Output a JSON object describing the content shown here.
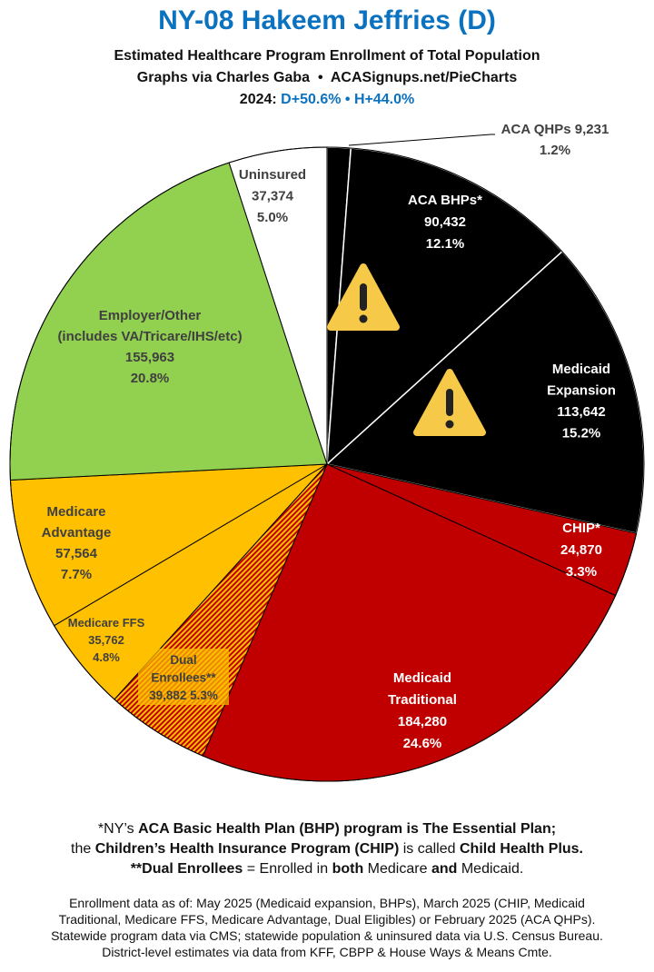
{
  "header": {
    "title": "NY-08 Hakeem Jeffries (D)",
    "subtitle": "Estimated Healthcare Program Enrollment of Total Population",
    "credit": "Graphs via Charles Gaba  •  ACASignups.net/PieCharts",
    "election_prefix": "2024: ",
    "election_d": "D+50.6%",
    "election_sep": " • ",
    "election_h": "H+44.0%"
  },
  "chart_data": {
    "type": "pie",
    "start": "12 o'clock, clockwise",
    "slices": [
      {
        "key": "qhp",
        "label": [
          "ACA QHPs 9,231",
          "1.2%"
        ],
        "value": 9231,
        "percent": 1.2,
        "color": "#000000"
      },
      {
        "key": "bhp",
        "label": [
          "ACA BHPs*",
          "90,432",
          "12.1%"
        ],
        "value": 90432,
        "percent": 12.1,
        "color": "#000000",
        "warning": true
      },
      {
        "key": "expansion",
        "label": [
          "Medicaid",
          "Expansion",
          "113,642",
          "15.2%"
        ],
        "value": 113642,
        "percent": 15.2,
        "color": "#000000",
        "warning": true
      },
      {
        "key": "chip",
        "label": [
          "CHIP*",
          "24,870",
          "3.3%"
        ],
        "value": 24870,
        "percent": 3.3,
        "color": "#c00000"
      },
      {
        "key": "traditional",
        "label": [
          "Medicaid",
          "Traditional",
          "184,280",
          "24.6%"
        ],
        "value": 184280,
        "percent": 24.6,
        "color": "#c00000"
      },
      {
        "key": "dual",
        "label": [
          "Dual",
          "Enrollees**",
          "39,882 5.3%"
        ],
        "value": 39882,
        "percent": 5.3,
        "color": "hatched #c00000/#ffc000"
      },
      {
        "key": "ffs",
        "label": [
          "Medicare FFS",
          "35,762",
          "4.8%"
        ],
        "value": 35762,
        "percent": 4.8,
        "color": "#ffc000"
      },
      {
        "key": "advantage",
        "label": [
          "Medicare",
          "Advantage",
          "57,564",
          "7.7%"
        ],
        "value": 57564,
        "percent": 7.7,
        "color": "#ffc000"
      },
      {
        "key": "employer",
        "label": [
          "Employer/Other",
          "(includes VA/Tricare/IHS/etc)",
          "155,963",
          "20.8%"
        ],
        "value": 155963,
        "percent": 20.8,
        "color": "#92d050"
      },
      {
        "key": "uninsured",
        "label": [
          "Uninsured",
          "37,374",
          "5.0%"
        ],
        "value": 37374,
        "percent": 5.0,
        "color": "#ffffff"
      }
    ],
    "warning_icon": "warning-triangle-icon"
  },
  "notes": {
    "l1_a": "*NY’s ",
    "l1_b": "ACA Basic Health Plan (BHP) program is The Essential Plan;",
    "l2_a": "the ",
    "l2_b": "Children’s Health Insurance Program (CHIP)",
    "l2_c": " is called ",
    "l2_d": "Child Health Plus.",
    "l3_a": "**Dual Enrollees",
    "l3_b": " = Enrolled in ",
    "l3_c": "both",
    "l3_d": " Medicare ",
    "l3_e": "and",
    "l3_f": " Medicaid."
  },
  "sources": [
    "Enrollment data as of: May 2025 (Medicaid expansion, BHPs), March 2025 (CHIP, Medicaid",
    "Traditional, Medicare FFS, Medicare Advantage, Dual Eligibles) or February 2025 (ACA QHPs).",
    "Statewide program data via CMS; statewide population & uninsured data via U.S. Census Bureau.",
    "District-level estimates via data from KFF, CBPP & House Ways & Means Cmte."
  ]
}
